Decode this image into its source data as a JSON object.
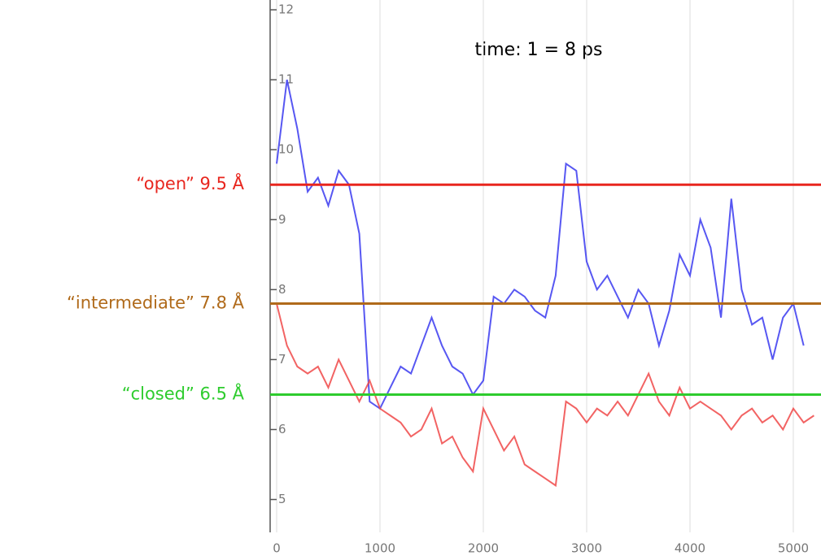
{
  "chart_data": {
    "type": "line",
    "annotation": "time: 1 = 8 ps",
    "xlim": [
      -63,
      5268
    ],
    "ylim": [
      4.53,
      12.14
    ],
    "xticks": [
      0,
      1000,
      2000,
      3000,
      4000,
      5000
    ],
    "yticks": [
      5,
      6,
      7,
      8,
      9,
      10,
      11,
      12
    ],
    "grid": true,
    "reference_lines": [
      {
        "label": "“open” 9.5 Å",
        "value": 9.5,
        "color": "#e8261e"
      },
      {
        "label": "“intermediate” 7.8 Å",
        "value": 7.8,
        "color": "#b06a1a"
      },
      {
        "label": "“closed” 6.5 Å",
        "value": 6.5,
        "color": "#2ecc2e"
      }
    ],
    "series": [
      {
        "color": "#3a3af0",
        "x": [
          0,
          100,
          200,
          300,
          400,
          500,
          600,
          700,
          800,
          900,
          1000,
          1100,
          1200,
          1300,
          1400,
          1500,
          1600,
          1700,
          1800,
          1900,
          2000,
          2100,
          2200,
          2300,
          2400,
          2500,
          2600,
          2700,
          2800,
          2900,
          3000,
          3100,
          3200,
          3300,
          3400,
          3500,
          3600,
          3700,
          3800,
          3900,
          4000,
          4100,
          4200,
          4300,
          4400,
          4500,
          4600,
          4700,
          4800,
          4900,
          5000,
          5100
        ],
        "values": [
          9.8,
          11.0,
          10.3,
          9.4,
          9.6,
          9.2,
          9.7,
          9.5,
          8.8,
          6.4,
          6.3,
          6.6,
          6.9,
          6.8,
          7.2,
          7.6,
          7.2,
          6.9,
          6.8,
          6.5,
          6.7,
          7.9,
          7.8,
          8.0,
          7.9,
          7.7,
          7.6,
          8.2,
          9.8,
          9.7,
          8.4,
          8.0,
          8.2,
          7.9,
          7.6,
          8.0,
          7.8,
          7.2,
          7.7,
          8.5,
          8.2,
          9.0,
          8.6,
          7.6,
          9.3,
          8.0,
          7.5,
          7.6,
          7.0,
          7.6,
          7.8,
          7.2
        ]
      },
      {
        "color": "#f04848",
        "x": [
          0,
          100,
          200,
          300,
          400,
          500,
          600,
          700,
          800,
          900,
          1000,
          1100,
          1200,
          1300,
          1400,
          1500,
          1600,
          1700,
          1800,
          1900,
          2000,
          2100,
          2200,
          2300,
          2400,
          2500,
          2600,
          2700,
          2800,
          2900,
          3000,
          3100,
          3200,
          3300,
          3400,
          3500,
          3600,
          3700,
          3800,
          3900,
          4000,
          4100,
          4200,
          4300,
          4400,
          4500,
          4600,
          4700,
          4800,
          4900,
          5000,
          5100,
          5200
        ],
        "values": [
          7.8,
          7.2,
          6.9,
          6.8,
          6.9,
          6.6,
          7.0,
          6.7,
          6.4,
          6.7,
          6.3,
          6.2,
          6.1,
          5.9,
          6.0,
          6.3,
          5.8,
          5.9,
          5.6,
          5.4,
          6.3,
          6.0,
          5.7,
          5.9,
          5.5,
          5.4,
          5.3,
          5.2,
          6.4,
          6.3,
          6.1,
          6.3,
          6.2,
          6.4,
          6.2,
          6.5,
          6.8,
          6.4,
          6.2,
          6.6,
          6.3,
          6.4,
          6.3,
          6.2,
          6.0,
          6.2,
          6.3,
          6.1,
          6.2,
          6.0,
          6.3,
          6.1,
          6.2
        ]
      }
    ]
  }
}
